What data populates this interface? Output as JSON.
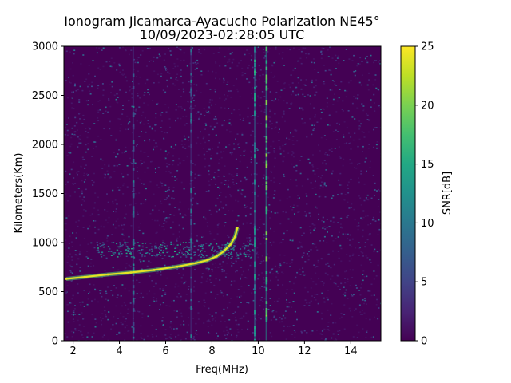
{
  "chart_data": {
    "type": "heatmap",
    "title_line1": "Ionogram Jicamarca-Ayacucho Polarization NE45°",
    "title_line2": "10/09/2023-02:28:05 UTC",
    "xlabel": "Freq(MHz)",
    "ylabel": "Kilometers(Km)",
    "colorbar_label": "SNR[dB]",
    "colormap": "viridis",
    "xlim": [
      1.6,
      15.3
    ],
    "ylim": [
      0,
      3000
    ],
    "clim": [
      0,
      25
    ],
    "x_ticks": [
      2,
      4,
      6,
      8,
      10,
      12,
      14
    ],
    "x_tick_labels": [
      "2",
      "4",
      "6",
      "8",
      "10",
      "12",
      "14"
    ],
    "y_ticks": [
      0,
      500,
      1000,
      1500,
      2000,
      2500,
      3000
    ],
    "y_tick_labels": [
      "0",
      "500",
      "1000",
      "1500",
      "2000",
      "2500",
      "3000"
    ],
    "colorbar_ticks": [
      0,
      5,
      10,
      15,
      20,
      25
    ],
    "colorbar_tick_labels": [
      "0",
      "5",
      "10",
      "15",
      "20",
      "25"
    ],
    "background_snr_db": 1,
    "trace": {
      "name": "",
      "snr_db": 24,
      "points": [
        [
          1.7,
          630
        ],
        [
          2.5,
          650
        ],
        [
          3.5,
          675
        ],
        [
          4.5,
          695
        ],
        [
          5.5,
          720
        ],
        [
          6.5,
          755
        ],
        [
          7.3,
          790
        ],
        [
          7.8,
          820
        ],
        [
          8.2,
          860
        ],
        [
          8.5,
          910
        ],
        [
          8.8,
          980
        ],
        [
          9.0,
          1060
        ],
        [
          9.1,
          1150
        ]
      ]
    },
    "echo_band": {
      "x_range": [
        3.0,
        9.8
      ],
      "y_range": [
        850,
        1010
      ],
      "snr_db": 12
    },
    "vertical_interference": [
      {
        "x": 4.6,
        "snr_db": 4
      },
      {
        "x": 7.1,
        "snr_db": 4
      },
      {
        "x": 9.85,
        "snr_db": 9
      },
      {
        "x": 10.35,
        "snr_db": 13
      }
    ]
  }
}
